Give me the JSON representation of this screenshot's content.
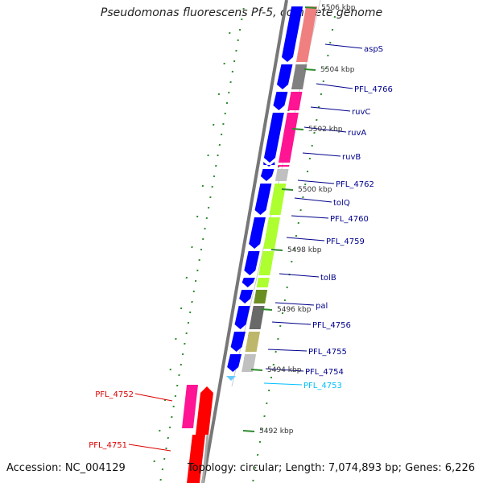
{
  "title": "Pseudomonas fluorescens Pf-5, complete genome",
  "footer": {
    "accession": "Accession: NC_004129",
    "summary": "Topology: circular; Length: 7,074,893 bp; Genes: 6,226"
  },
  "colors": {
    "backbone": "#888888",
    "cds_arrow": "#0000ff",
    "tick_minor": "#2e8b2e",
    "label_forward": "#00008b",
    "label_reverse": "#dd0000",
    "label_selected": "#00bfff"
  },
  "position_markers": [
    "5506 kbp",
    "5504 kbp",
    "5502 kbp",
    "5500 kbp",
    "5498 kbp",
    "5496 kbp",
    "5494 kbp",
    "5492 kbp"
  ],
  "genes": [
    {
      "label": "aspS",
      "strand": "forward",
      "cog_color": "#f08080"
    },
    {
      "label": "PFL_4766",
      "strand": "forward",
      "cog_color": "#808080"
    },
    {
      "label": "ruvC",
      "strand": "forward",
      "cog_color": "#ff1493"
    },
    {
      "label": "ruvA",
      "strand": "forward",
      "cog_color": "#ff1493"
    },
    {
      "label": "ruvB",
      "strand": "forward",
      "cog_color": "#ff1493"
    },
    {
      "label": "PFL_4762",
      "strand": "forward",
      "cog_color": "#c0c0c0"
    },
    {
      "label": "tolQ",
      "strand": "forward",
      "cog_color": "#adff2f"
    },
    {
      "label": "PFL_4760",
      "strand": "forward",
      "cog_color": "#adff2f"
    },
    {
      "label": "PFL_4759",
      "strand": "forward",
      "cog_color": "#0000ff"
    },
    {
      "label": "tolB",
      "strand": "forward",
      "cog_color": "#adff2f"
    },
    {
      "label": "pal",
      "strand": "forward",
      "cog_color": "#6b8e23"
    },
    {
      "label": "PFL_4756",
      "strand": "forward",
      "cog_color": "#696969"
    },
    {
      "label": "PFL_4755",
      "strand": "forward",
      "cog_color": "#bdb76b"
    },
    {
      "label": "PFL_4754",
      "strand": "forward",
      "cog_color": "#c0c0c0"
    },
    {
      "label": "PFL_4753",
      "strand": "forward",
      "cog_color": "#87cefa"
    },
    {
      "label": "PFL_4752",
      "strand": "reverse",
      "cog_color": "#ff1493"
    },
    {
      "label": "PFL_4751",
      "strand": "reverse",
      "cog_color": "#ff0000"
    }
  ]
}
